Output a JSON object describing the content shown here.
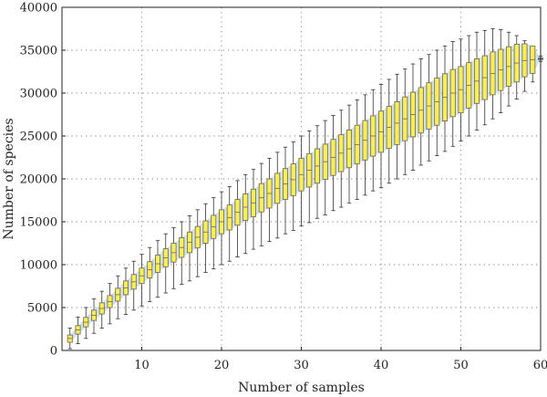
{
  "chart_data": {
    "type": "box",
    "title": "",
    "xlabel": "Number of samples",
    "ylabel": "Number of species",
    "xlim": [
      0,
      60
    ],
    "ylim": [
      0,
      40000
    ],
    "x_ticks": [
      10,
      20,
      30,
      40,
      50,
      60
    ],
    "x_tick_labels": [
      "10",
      "20",
      "30",
      "40",
      "50",
      "60"
    ],
    "y_ticks": [
      0,
      5000,
      10000,
      15000,
      20000,
      25000,
      30000,
      35000,
      40000
    ],
    "y_tick_labels": [
      "0",
      "5000",
      "10000",
      "15000",
      "20000",
      "25000",
      "30000",
      "35000",
      "40000"
    ],
    "grid": true,
    "grid_style": "dotted",
    "legend": "none",
    "colors": {
      "box_fill": "#ffee44",
      "box_stroke": "#666666",
      "whisker": "#333333",
      "band_fill": "#cfe1f4",
      "grid": "#999999"
    },
    "x": [
      1,
      2,
      3,
      4,
      5,
      6,
      7,
      8,
      9,
      10,
      11,
      12,
      13,
      14,
      15,
      16,
      17,
      18,
      19,
      20,
      21,
      22,
      23,
      24,
      25,
      26,
      27,
      28,
      29,
      30,
      31,
      32,
      33,
      34,
      35,
      36,
      37,
      38,
      39,
      40,
      41,
      42,
      43,
      44,
      45,
      46,
      47,
      48,
      49,
      50,
      51,
      52,
      53,
      54,
      55,
      56,
      57,
      58,
      59,
      60
    ],
    "median": [
      1400,
      2400,
      3300,
      4100,
      4900,
      5700,
      6500,
      7300,
      8000,
      8700,
      9400,
      10100,
      10800,
      11400,
      12000,
      12600,
      13200,
      13800,
      14400,
      15000,
      15500,
      16100,
      16700,
      17200,
      17800,
      18300,
      18900,
      19400,
      19900,
      20500,
      21000,
      21500,
      22000,
      22500,
      23000,
      23500,
      24000,
      24500,
      25000,
      25500,
      26000,
      26500,
      27000,
      27500,
      28000,
      28500,
      29000,
      29500,
      30000,
      30400,
      30900,
      31400,
      31800,
      32300,
      32700,
      33100,
      33500,
      33800,
      33900,
      34000
    ],
    "q1": [
      950,
      1900,
      2750,
      3500,
      4250,
      5000,
      5750,
      6500,
      7150,
      7800,
      8450,
      9100,
      9750,
      10300,
      10850,
      11400,
      11950,
      12500,
      13050,
      13600,
      14050,
      14600,
      15150,
      15600,
      16150,
      16600,
      17150,
      17600,
      18050,
      18600,
      19050,
      19500,
      19950,
      20400,
      20850,
      21300,
      21750,
      22200,
      22650,
      23100,
      23550,
      24000,
      24450,
      24900,
      25350,
      25800,
      26250,
      26750,
      27250,
      27700,
      28250,
      28800,
      29250,
      29800,
      30300,
      30800,
      31300,
      31900,
      32300,
      33900
    ],
    "q3": [
      1800,
      2900,
      3850,
      4700,
      5550,
      6400,
      7250,
      8100,
      8850,
      9600,
      10350,
      11100,
      11850,
      12500,
      13150,
      13800,
      14450,
      15100,
      15750,
      16400,
      16950,
      17600,
      18250,
      18800,
      19450,
      20000,
      20650,
      21200,
      21750,
      22400,
      22950,
      23500,
      24050,
      24600,
      25150,
      25700,
      26250,
      26800,
      27350,
      27900,
      28450,
      29000,
      29550,
      30100,
      30650,
      31200,
      31750,
      32250,
      32750,
      33100,
      33550,
      34000,
      34350,
      34800,
      35100,
      35400,
      35700,
      35750,
      35500,
      34100
    ],
    "whisker_low": [
      200,
      800,
      1400,
      2000,
      2600,
      3100,
      3700,
      4200,
      4700,
      5200,
      5700,
      6200,
      6700,
      7200,
      7700,
      8100,
      8600,
      9100,
      9500,
      10000,
      10400,
      10900,
      11300,
      11800,
      12200,
      12700,
      13100,
      13600,
      14000,
      14500,
      14900,
      15400,
      15800,
      16300,
      16700,
      17200,
      17600,
      18100,
      18600,
      19000,
      19500,
      20000,
      20500,
      21000,
      21600,
      22100,
      22700,
      23200,
      23800,
      24400,
      25000,
      25700,
      26300,
      27000,
      27700,
      28500,
      29300,
      30200,
      31300,
      33700
    ],
    "whisker_high": [
      2600,
      3900,
      5000,
      6000,
      6900,
      7800,
      8700,
      9600,
      10400,
      11200,
      12000,
      12800,
      13600,
      14300,
      15000,
      15700,
      16400,
      17100,
      17800,
      18500,
      19100,
      19800,
      20500,
      21100,
      21800,
      22400,
      23100,
      23700,
      24300,
      25000,
      25600,
      26200,
      26800,
      27400,
      28000,
      28600,
      29200,
      29800,
      30400,
      31000,
      31600,
      32200,
      32800,
      33400,
      34000,
      34500,
      35000,
      35500,
      36000,
      36300,
      36700,
      37100,
      37300,
      37500,
      37400,
      37100,
      36700,
      36100,
      35200,
      34300
    ]
  }
}
